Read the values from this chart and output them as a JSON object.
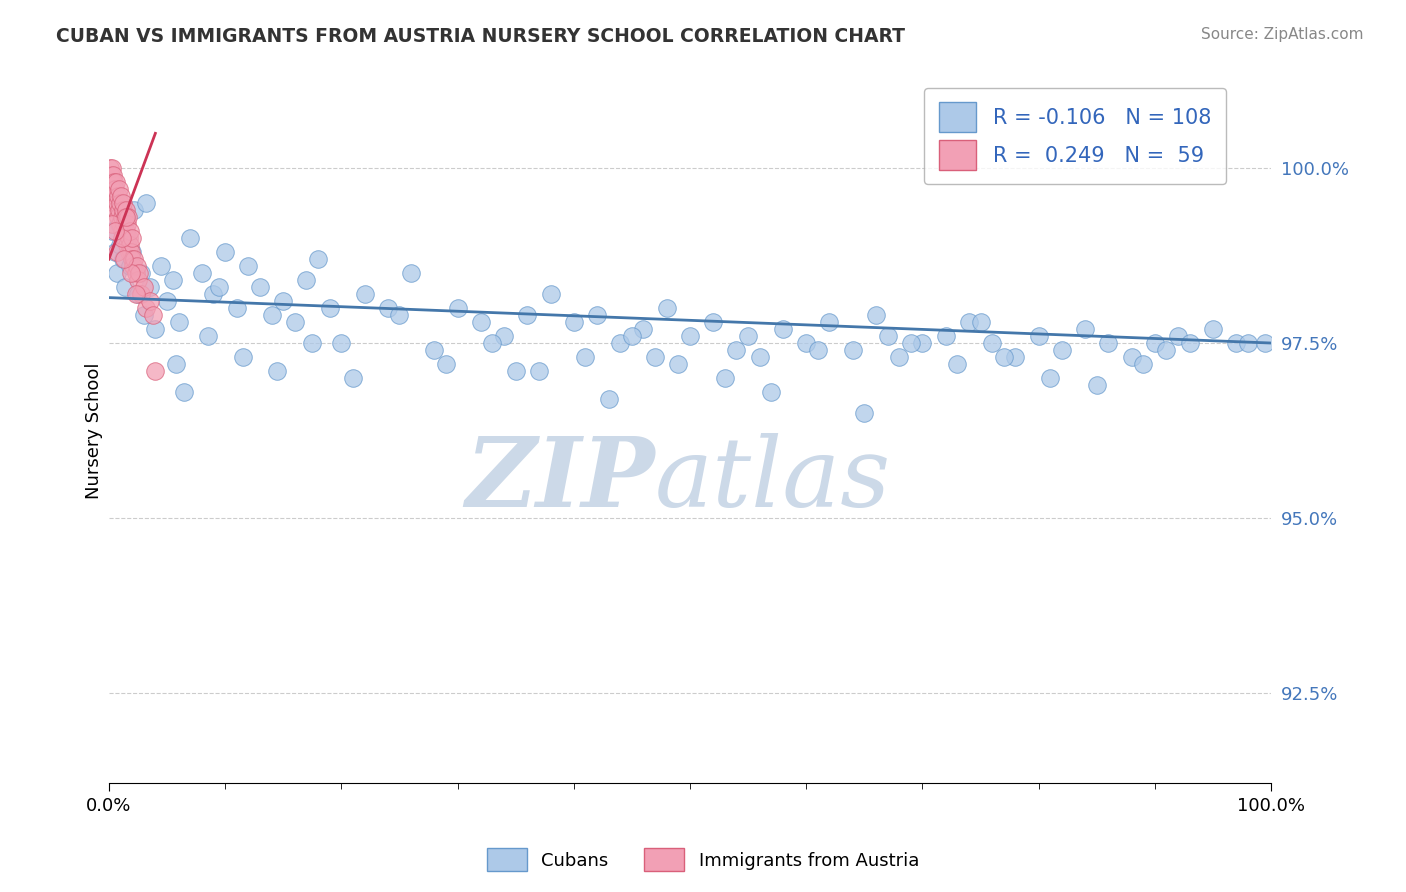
{
  "title": "CUBAN VS IMMIGRANTS FROM AUSTRIA NURSERY SCHOOL CORRELATION CHART",
  "source": "Source: ZipAtlas.com",
  "ylabel": "Nursery School",
  "ytick_values": [
    92.5,
    95.0,
    97.5,
    100.0
  ],
  "xlim": [
    0,
    100
  ],
  "ylim": [
    91.2,
    101.3
  ],
  "legend_r1": "-0.106",
  "legend_n1": "108",
  "legend_r2": "0.249",
  "legend_n2": "59",
  "blue_color": "#adc9e8",
  "pink_color": "#f2a0b5",
  "blue_edge_color": "#6699cc",
  "pink_edge_color": "#d9607a",
  "blue_line_color": "#4477aa",
  "pink_line_color": "#cc3355",
  "watermark_color": "#ccd9e8",
  "blue_scatter_x": [
    0.3,
    0.5,
    0.7,
    0.9,
    1.0,
    1.2,
    1.4,
    1.6,
    1.8,
    2.0,
    2.2,
    2.5,
    2.8,
    3.0,
    3.5,
    4.0,
    4.5,
    5.0,
    5.5,
    6.0,
    7.0,
    8.0,
    9.0,
    10.0,
    11.0,
    12.0,
    13.0,
    14.0,
    15.0,
    16.0,
    17.0,
    18.0,
    19.0,
    20.0,
    22.0,
    24.0,
    26.0,
    28.0,
    30.0,
    32.0,
    34.0,
    36.0,
    38.0,
    40.0,
    42.0,
    44.0,
    46.0,
    48.0,
    50.0,
    52.0,
    54.0,
    55.0,
    56.0,
    58.0,
    60.0,
    62.0,
    64.0,
    66.0,
    68.0,
    70.0,
    72.0,
    74.0,
    76.0,
    78.0,
    80.0,
    82.0,
    84.0,
    86.0,
    88.0,
    90.0,
    91.0,
    92.0,
    93.0,
    95.0,
    97.0,
    98.0,
    5.8,
    8.5,
    11.5,
    14.5,
    17.5,
    6.5,
    3.2,
    9.5,
    21.0,
    25.0,
    29.0,
    33.0,
    37.0,
    41.0,
    45.0,
    49.0,
    53.0,
    57.0,
    61.0,
    65.0,
    69.0,
    73.0,
    77.0,
    81.0,
    85.0,
    89.0,
    43.0,
    99.5,
    35.0,
    47.0,
    67.0,
    75.0
  ],
  "blue_scatter_y": [
    99.1,
    98.8,
    98.5,
    99.2,
    98.9,
    98.7,
    98.3,
    99.0,
    98.6,
    98.8,
    99.4,
    98.2,
    98.5,
    97.9,
    98.3,
    97.7,
    98.6,
    98.1,
    98.4,
    97.8,
    99.0,
    98.5,
    98.2,
    98.8,
    98.0,
    98.6,
    98.3,
    97.9,
    98.1,
    97.8,
    98.4,
    98.7,
    98.0,
    97.5,
    98.2,
    98.0,
    98.5,
    97.4,
    98.0,
    97.8,
    97.6,
    97.9,
    98.2,
    97.8,
    97.9,
    97.5,
    97.7,
    98.0,
    97.6,
    97.8,
    97.4,
    97.6,
    97.3,
    97.7,
    97.5,
    97.8,
    97.4,
    97.9,
    97.3,
    97.5,
    97.6,
    97.8,
    97.5,
    97.3,
    97.6,
    97.4,
    97.7,
    97.5,
    97.3,
    97.5,
    97.4,
    97.6,
    97.5,
    97.7,
    97.5,
    97.5,
    97.2,
    97.6,
    97.3,
    97.1,
    97.5,
    96.8,
    99.5,
    98.3,
    97.0,
    97.9,
    97.2,
    97.5,
    97.1,
    97.3,
    97.6,
    97.2,
    97.0,
    96.8,
    97.4,
    96.5,
    97.5,
    97.2,
    97.3,
    97.0,
    96.9,
    97.2,
    96.7,
    97.5,
    97.1,
    97.3,
    97.6,
    97.8
  ],
  "pink_scatter_x": [
    0.1,
    0.15,
    0.2,
    0.25,
    0.3,
    0.35,
    0.4,
    0.45,
    0.5,
    0.55,
    0.6,
    0.65,
    0.7,
    0.75,
    0.8,
    0.85,
    0.9,
    0.95,
    1.0,
    1.05,
    1.1,
    1.15,
    1.2,
    1.25,
    1.3,
    1.35,
    1.4,
    1.45,
    1.5,
    1.55,
    1.6,
    1.65,
    1.7,
    1.75,
    1.8,
    1.85,
    1.9,
    1.95,
    2.0,
    2.1,
    2.2,
    2.3,
    2.4,
    2.5,
    2.6,
    2.8,
    3.0,
    3.2,
    3.5,
    3.8,
    0.3,
    0.7,
    1.1,
    1.5,
    1.9,
    2.3,
    4.0,
    0.5,
    1.3
  ],
  "pink_scatter_y": [
    100.0,
    99.9,
    99.8,
    100.0,
    99.7,
    99.9,
    99.5,
    99.8,
    99.6,
    99.7,
    99.4,
    99.8,
    99.5,
    99.3,
    99.6,
    99.7,
    99.4,
    99.2,
    99.5,
    99.6,
    99.3,
    99.1,
    99.4,
    99.5,
    99.2,
    99.0,
    99.3,
    99.4,
    99.1,
    98.9,
    99.2,
    99.3,
    99.0,
    98.8,
    98.9,
    99.1,
    98.8,
    98.7,
    99.0,
    98.6,
    98.7,
    98.5,
    98.6,
    98.4,
    98.5,
    98.2,
    98.3,
    98.0,
    98.1,
    97.9,
    99.2,
    98.8,
    99.0,
    99.3,
    98.5,
    98.2,
    97.1,
    99.1,
    98.7
  ],
  "pink_line_x0": 0.0,
  "pink_line_x1": 4.0,
  "pink_line_y0": 98.7,
  "pink_line_y1": 100.5,
  "blue_line_y_at_0": 98.15,
  "blue_line_y_at_100": 97.5
}
